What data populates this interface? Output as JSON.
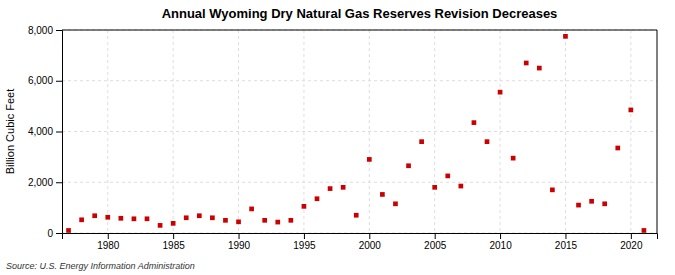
{
  "chart_data": {
    "type": "scatter",
    "title": "Annual Wyoming Dry Natural Gas Reserves Revision Decreases",
    "ylabel": "Billion Cubic Feet",
    "annotations": [
      "Source: U.S. Energy Information Administration"
    ],
    "x": [
      1977,
      1978,
      1979,
      1980,
      1981,
      1982,
      1983,
      1984,
      1985,
      1986,
      1987,
      1988,
      1989,
      1990,
      1991,
      1992,
      1993,
      1994,
      1995,
      1996,
      1997,
      1998,
      1999,
      2000,
      2001,
      2002,
      2003,
      2004,
      2005,
      2006,
      2007,
      2008,
      2009,
      2010,
      2011,
      2012,
      2013,
      2014,
      2015,
      2016,
      2017,
      2018,
      2019,
      2020,
      2021
    ],
    "values": [
      100,
      520,
      680,
      620,
      580,
      560,
      560,
      300,
      380,
      600,
      680,
      600,
      500,
      440,
      950,
      500,
      430,
      500,
      1050,
      1350,
      1750,
      1800,
      700,
      2900,
      1520,
      1150,
      2650,
      3600,
      1800,
      2250,
      1850,
      4350,
      3600,
      5550,
      2950,
      6700,
      6500,
      1700,
      7750,
      1100,
      1250,
      1150,
      3350,
      4850,
      100
    ],
    "color": "#cc0000",
    "marker": "square",
    "grid": true,
    "xlim": [
      1976.5,
      2022
    ],
    "xticks": [
      1980,
      1985,
      1990,
      1995,
      2000,
      2005,
      2010,
      2015,
      2020
    ],
    "ylim": [
      0,
      8000
    ],
    "yticks": [
      0,
      {
        "value": 2000,
        "label": "2,000"
      },
      {
        "value": 4000,
        "label": "4,000"
      },
      {
        "value": 6000,
        "label": "6,000"
      },
      {
        "value": 8000,
        "label": "8,000"
      }
    ]
  }
}
